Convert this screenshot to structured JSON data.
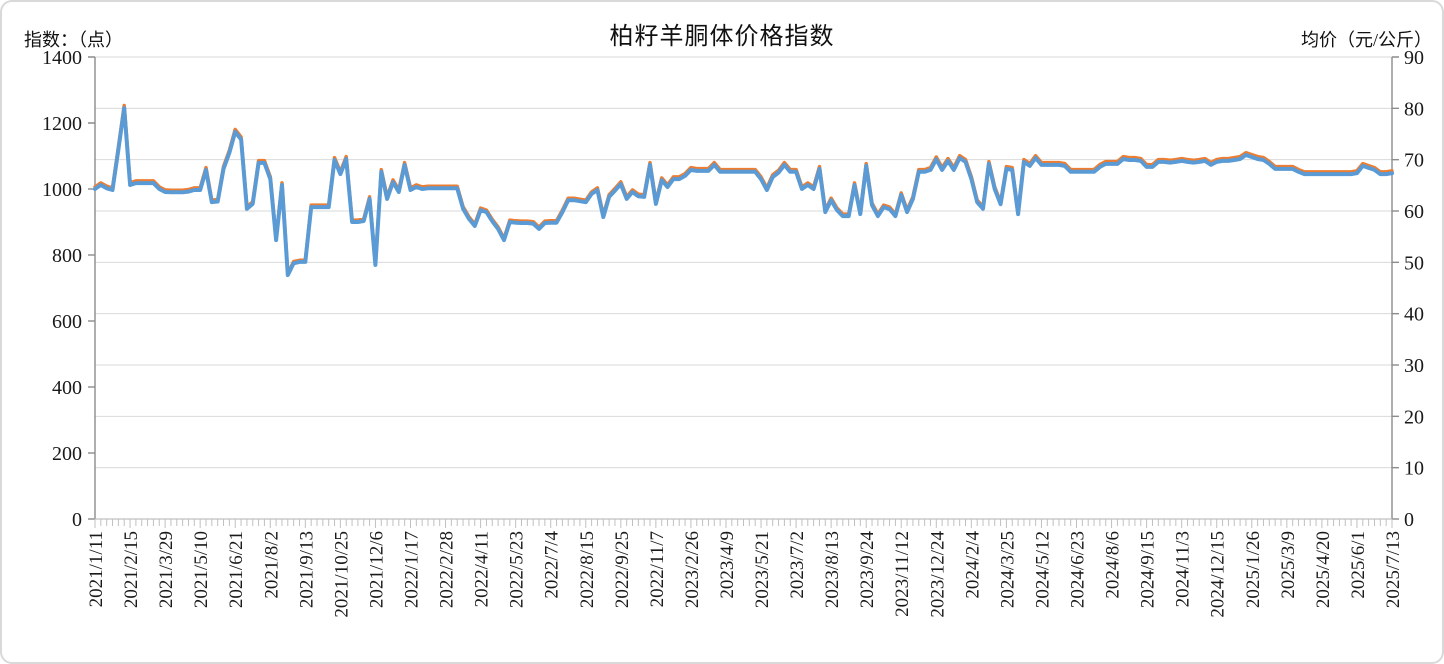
{
  "title": "柏籽羊胴体价格指数",
  "left_axis": {
    "title": "指数：（点）",
    "min": 0,
    "max": 1400,
    "step": 200
  },
  "right_axis": {
    "title": "均价（元/公斤）",
    "min": 0,
    "max": 90,
    "step": 10
  },
  "colors": {
    "index_line": "#5B9BD5",
    "price_line": "#ED7D31",
    "gridline": "#D9D9D9",
    "axis_line": "#8C8C8C",
    "minor_tick": "#C0C0C0",
    "text": "#1a1a1a"
  },
  "chart_data": {
    "type": "line",
    "title": "柏籽羊胴体价格指数",
    "grid": "horizontal gridlines at every 10 units of right axis",
    "legend_position": "none",
    "ylim_left": [
      0,
      1400
    ],
    "ylim_right": [
      0,
      90
    ],
    "points_per_tick": 6,
    "x_tick_labels": [
      "2021/1/11",
      "2021/2/15",
      "2021/3/29",
      "2021/5/10",
      "2021/6/21",
      "2021/8/2",
      "2021/9/13",
      "2021/10/25",
      "2021/12/6",
      "2022/1/17",
      "2022/2/28",
      "2022/4/11",
      "2022/5/23",
      "2022/7/4",
      "2022/8/15",
      "2022/9/25",
      "2022/11/7",
      "2023/2/26",
      "2023/4/9",
      "2023/5/21",
      "2023/7/2",
      "2023/8/13",
      "2023/9/24",
      "2023/11/12",
      "2023/12/24",
      "2024/2/4",
      "2024/3/25",
      "2024/5/12",
      "2024/6/23",
      "2024/8/6",
      "2024/9/15",
      "2024/11/3",
      "2024/12/15",
      "2025/1/26",
      "2025/3/9",
      "2025/4/20",
      "2025/6/1",
      "2025/7/13"
    ],
    "series": [
      {
        "name": "指数（点）",
        "axis": "left",
        "color": "#5B9BD5",
        "values": [
          1000,
          1012,
          1002,
          997,
          1120,
          1245,
          1012,
          1018,
          1018,
          1018,
          1018,
          1000,
          991,
          990,
          990,
          990,
          992,
          997,
          997,
          1058,
          960,
          962,
          1061,
          1110,
          1173,
          1150,
          940,
          955,
          1079,
          1079,
          1030,
          845,
          1012,
          739,
          775,
          779,
          779,
          945,
          945,
          945,
          945,
          1088,
          1045,
          1091,
          900,
          900,
          903,
          970,
          770,
          1052,
          970,
          1021,
          991,
          1073,
          997,
          1006,
          1000,
          1002,
          1002,
          1002,
          1002,
          1002,
          1002,
          940,
          910,
          888,
          936,
          930,
          902,
          879,
          845,
          900,
          898,
          897,
          897,
          895,
          879,
          897,
          898,
          898,
          930,
          966,
          966,
          963,
          960,
          985,
          997,
          915,
          976,
          995,
          1015,
          970,
          991,
          978,
          976,
          1073,
          955,
          1027,
          1006,
          1030,
          1030,
          1040,
          1058,
          1055,
          1055,
          1055,
          1073,
          1052,
          1052,
          1052,
          1052,
          1052,
          1052,
          1052,
          1030,
          997,
          1036,
          1050,
          1073,
          1052,
          1052,
          1000,
          1012,
          1000,
          1061,
          930,
          966,
          936,
          918,
          918,
          1012,
          924,
          1070,
          951,
          918,
          945,
          939,
          918,
          982,
          930,
          970,
          1052,
          1052,
          1058,
          1090,
          1058,
          1085,
          1058,
          1094,
          1082,
          1030,
          960,
          940,
          1076,
          1000,
          954,
          1061,
          1058,
          924,
          1082,
          1070,
          1094,
          1073,
          1073,
          1073,
          1073,
          1070,
          1052,
          1052,
          1052,
          1052,
          1052,
          1067,
          1076,
          1076,
          1076,
          1091,
          1088,
          1088,
          1085,
          1067,
          1067,
          1082,
          1082,
          1080,
          1082,
          1085,
          1082,
          1080,
          1082,
          1085,
          1073,
          1082,
          1085,
          1085,
          1088,
          1091,
          1103,
          1097,
          1091,
          1088,
          1076,
          1061,
          1061,
          1061,
          1061,
          1052,
          1045,
          1045,
          1045,
          1045,
          1045,
          1045,
          1045,
          1045,
          1045,
          1048,
          1070,
          1064,
          1058,
          1045,
          1045,
          1048
        ]
      },
      {
        "name": "均价（元/公斤）",
        "axis": "right",
        "color": "#ED7D31",
        "derived_from": "指数（点）",
        "scale_factor": 0.0647
      }
    ]
  }
}
